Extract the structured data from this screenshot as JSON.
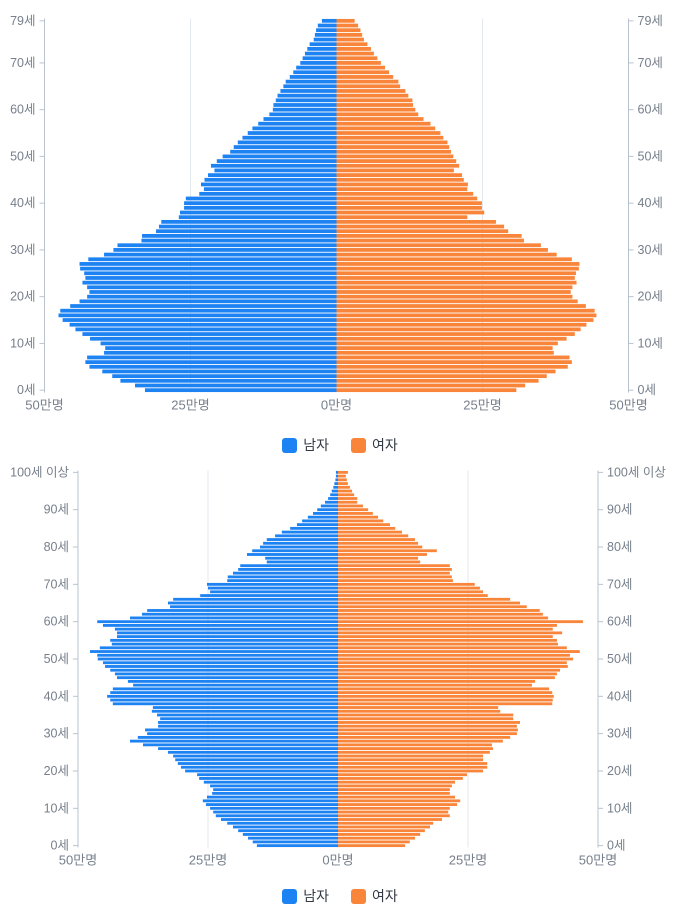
{
  "colors": {
    "male": "#1d82f2",
    "female": "#f8853a",
    "axis_line": "#b9c3cf",
    "grid_line": "#e3e7ee",
    "axis_label": "#767f8b",
    "legend_text": "#333a44",
    "background": "#ffffff"
  },
  "legend": {
    "male_label": "남자",
    "female_label": "여자"
  },
  "chart_data": [
    {
      "type": "bar",
      "subtype": "population-pyramid",
      "orientation": "horizontal",
      "title": "",
      "age_min": 0,
      "age_max": 79,
      "unit": "만명",
      "grid": true,
      "legend_position": "bottom",
      "x_axis": {
        "xlim": [
          -50,
          50
        ],
        "tick_values": [
          -50,
          -25,
          0,
          25,
          50
        ],
        "tick_labels": [
          "50만명",
          "25만명",
          "0만명",
          "25만명",
          "50만명"
        ]
      },
      "y_axis": {
        "tick_ages": [
          0,
          10,
          20,
          30,
          40,
          50,
          60,
          70,
          79
        ],
        "tick_labels": [
          "0세",
          "10세",
          "20세",
          "30세",
          "40세",
          "50세",
          "60세",
          "70세",
          "79세"
        ]
      },
      "series": [
        {
          "name": "남자",
          "side": "left",
          "color_key": "male",
          "values": [
            32.8,
            34.5,
            37.0,
            38.4,
            40.1,
            42.3,
            43.0,
            42.7,
            39.8,
            39.6,
            40.4,
            42.2,
            43.5,
            44.7,
            45.7,
            46.9,
            47.6,
            47.3,
            45.6,
            44.0,
            42.7,
            42.3,
            42.7,
            43.5,
            43.0,
            43.2,
            43.9,
            44.0,
            42.5,
            39.8,
            38.2,
            37.5,
            33.4,
            33.3,
            30.9,
            30.4,
            30.0,
            27.0,
            26.8,
            26.1,
            26.1,
            25.8,
            23.5,
            22.7,
            23.2,
            22.6,
            22.0,
            20.9,
            21.5,
            20.5,
            19.5,
            18.2,
            17.6,
            16.9,
            16.1,
            15.2,
            14.4,
            13.4,
            12.5,
            11.5,
            10.9,
            10.8,
            10.4,
            10.1,
            9.6,
            9.1,
            8.7,
            8.0,
            7.4,
            6.9,
            6.2,
            5.8,
            5.4,
            5.0,
            4.6,
            3.9,
            3.7,
            3.5,
            3.2,
            2.5
          ]
        },
        {
          "name": "여자",
          "side": "right",
          "color_key": "female",
          "values": [
            30.8,
            32.3,
            34.6,
            36.0,
            37.5,
            39.6,
            40.3,
            39.9,
            37.2,
            37.0,
            37.9,
            39.4,
            40.8,
            41.8,
            42.8,
            44.0,
            44.5,
            44.2,
            42.7,
            41.3,
            40.4,
            40.1,
            40.4,
            41.1,
            40.8,
            41.0,
            41.5,
            41.6,
            40.3,
            37.7,
            36.2,
            35.0,
            32.1,
            31.7,
            29.4,
            28.7,
            27.3,
            22.4,
            25.3,
            24.9,
            24.9,
            24.1,
            23.4,
            22.4,
            22.5,
            21.8,
            21.5,
            20.1,
            21.0,
            20.5,
            20.0,
            19.6,
            19.3,
            19.0,
            18.3,
            17.8,
            16.9,
            16.1,
            14.9,
            14.0,
            13.5,
            13.1,
            13.0,
            12.3,
            11.8,
            10.9,
            10.6,
            9.7,
            9.0,
            8.3,
            7.6,
            7.0,
            6.4,
            5.9,
            5.3,
            4.7,
            4.4,
            4.1,
            3.7,
            3.1
          ]
        }
      ]
    },
    {
      "type": "bar",
      "subtype": "population-pyramid",
      "orientation": "horizontal",
      "title": "",
      "age_min": 0,
      "age_max": 100,
      "unit": "만명",
      "grid": true,
      "legend_position": "bottom",
      "x_axis": {
        "xlim": [
          -50,
          50
        ],
        "tick_values": [
          -50,
          -25,
          0,
          25,
          50
        ],
        "tick_labels": [
          "50만명",
          "25만명",
          "0만명",
          "25만명",
          "50만명"
        ]
      },
      "y_axis": {
        "tick_ages": [
          0,
          10,
          20,
          30,
          40,
          50,
          60,
          70,
          80,
          90,
          100
        ],
        "tick_labels": [
          "0세",
          "10세",
          "20세",
          "30세",
          "40세",
          "50세",
          "60세",
          "70세",
          "80세",
          "90세",
          "100세 이상"
        ]
      },
      "series": [
        {
          "name": "남자",
          "side": "left",
          "color_key": "male",
          "values": [
            15.6,
            16.4,
            17.3,
            18.3,
            19.2,
            20.2,
            21.3,
            22.5,
            23.5,
            24.0,
            24.6,
            25.4,
            26.0,
            25.2,
            24.2,
            24.0,
            24.6,
            25.8,
            26.7,
            27.1,
            29.4,
            30.2,
            30.8,
            31.3,
            31.7,
            32.7,
            34.6,
            37.5,
            40.0,
            38.5,
            36.7,
            37.1,
            34.6,
            34.6,
            34.2,
            34.8,
            35.8,
            35.6,
            43.3,
            43.8,
            44.4,
            43.8,
            43.3,
            39.4,
            40.4,
            42.5,
            42.9,
            43.8,
            44.8,
            45.2,
            46.2,
            46.3,
            47.7,
            45.8,
            43.5,
            43.8,
            42.5,
            42.5,
            42.9,
            45.2,
            46.3,
            40.0,
            37.7,
            36.7,
            32.3,
            32.7,
            31.7,
            26.5,
            24.6,
            25.0,
            25.2,
            21.3,
            21.2,
            20.2,
            19.2,
            18.8,
            13.7,
            14.0,
            17.5,
            16.5,
            15.0,
            14.4,
            13.7,
            12.1,
            10.8,
            9.2,
            7.9,
            6.9,
            5.8,
            4.8,
            4.0,
            3.3,
            2.5,
            1.9,
            1.5,
            1.2,
            0.9,
            0.7,
            0.5,
            0.4,
            0.4
          ]
        },
        {
          "name": "여자",
          "side": "right",
          "color_key": "female",
          "values": [
            12.9,
            13.8,
            14.8,
            15.8,
            16.7,
            17.7,
            18.3,
            20.0,
            21.5,
            21.2,
            21.5,
            22.9,
            23.5,
            22.5,
            21.5,
            21.5,
            21.9,
            22.5,
            24.0,
            24.8,
            27.9,
            28.7,
            28.7,
            27.9,
            27.9,
            29.2,
            29.8,
            29.6,
            31.7,
            33.1,
            34.4,
            34.6,
            34.4,
            35.0,
            33.7,
            33.7,
            31.2,
            30.8,
            41.2,
            41.3,
            41.5,
            41.2,
            40.6,
            37.3,
            37.9,
            41.7,
            42.1,
            42.7,
            44.2,
            44.0,
            45.2,
            44.6,
            46.5,
            44.0,
            42.3,
            42.1,
            41.3,
            43.1,
            41.3,
            42.1,
            47.1,
            40.4,
            39.4,
            38.8,
            36.3,
            35.0,
            33.1,
            28.8,
            27.9,
            27.3,
            26.3,
            22.1,
            21.9,
            21.5,
            21.9,
            21.5,
            15.8,
            15.4,
            17.1,
            19.0,
            16.2,
            15.4,
            14.8,
            13.5,
            12.3,
            11.0,
            10.0,
            8.7,
            7.7,
            6.7,
            5.8,
            4.8,
            3.7,
            3.7,
            3.1,
            2.7,
            2.3,
            1.9,
            1.7,
            1.5,
            1.9
          ]
        }
      ]
    }
  ]
}
